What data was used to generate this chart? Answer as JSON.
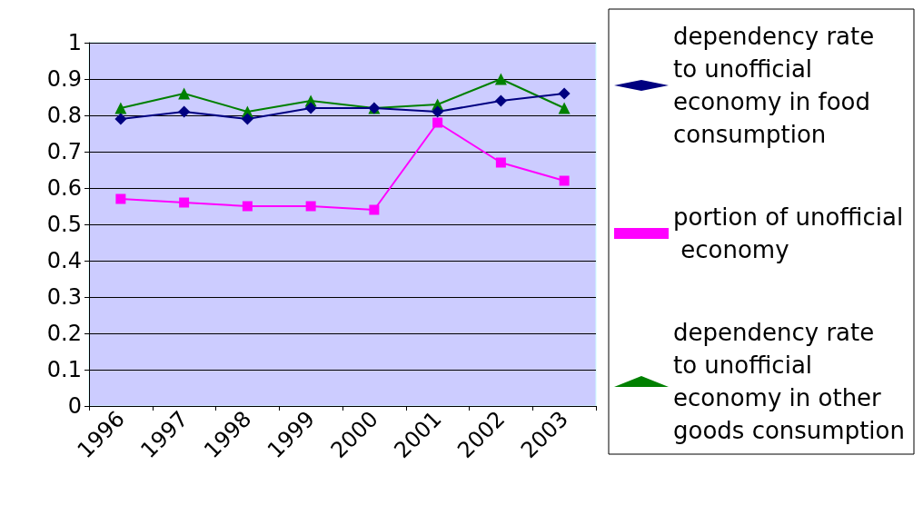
{
  "chart_data": {
    "type": "line",
    "categories": [
      "1996",
      "1997",
      "1998",
      "1999",
      "2000",
      "2001",
      "2002",
      "2003"
    ],
    "ylim": [
      0,
      1
    ],
    "yticks": [
      0,
      0.1,
      0.2,
      0.3,
      0.4,
      0.5,
      0.6,
      0.7,
      0.8,
      0.9,
      1
    ],
    "grid": "y",
    "legend": "right",
    "line_style": "solid",
    "series": [
      {
        "name": "dependency rate to unofficial economy in food consumption",
        "color": "#000080",
        "marker": "diamond",
        "values": [
          0.79,
          0.81,
          0.79,
          0.82,
          0.82,
          0.81,
          0.84,
          0.86
        ]
      },
      {
        "name": "portion of unofficial economy",
        "color": "#ff00ff",
        "marker": "square",
        "values": [
          0.57,
          0.56,
          0.55,
          0.55,
          0.54,
          0.78,
          0.67,
          0.62
        ]
      },
      {
        "name": "dependency rate to unofficial economy in other goods consumption",
        "color": "#008000",
        "marker": "triangle",
        "values": [
          0.82,
          0.86,
          0.81,
          0.84,
          0.82,
          0.83,
          0.9,
          0.82
        ]
      }
    ]
  }
}
